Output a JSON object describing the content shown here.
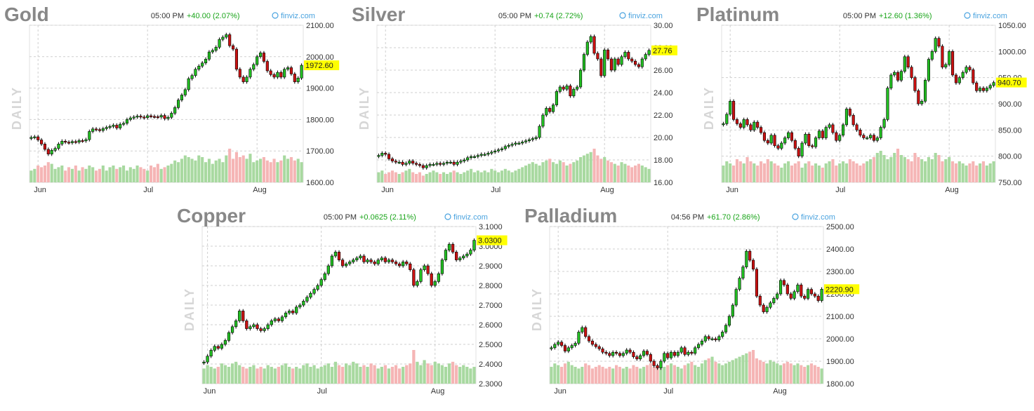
{
  "brand": "finviz.com",
  "period_label": "DAILY",
  "colors": {
    "up": "#22c022",
    "down": "#cc1111",
    "vol_up": "#a8d9a0",
    "vol_down": "#f5b5b5",
    "last_bg": "#ffff00",
    "grid": "#cfcfcf",
    "change": "#1aa51a",
    "brand": "#4aa3df"
  },
  "chart_data": [
    {
      "type": "candlestick",
      "title": "Gold",
      "time": "05:00 PM",
      "change": "+40.00 (2.07%)",
      "last": 1972.6,
      "last_label": "1972.60",
      "y_ticks": [
        "2100.00",
        "2000.00",
        "1900.00",
        "1800.00",
        "1700.00",
        "1600.00"
      ],
      "ylim": [
        1600,
        2100
      ],
      "x_ticks": [
        "Jun",
        "Jul",
        "Aug"
      ],
      "x_tick_index": [
        2,
        34,
        66
      ],
      "close": [
        1743,
        1745,
        1735,
        1722,
        1705,
        1690,
        1702,
        1708,
        1722,
        1731,
        1728,
        1726,
        1730,
        1728,
        1733,
        1732,
        1736,
        1762,
        1770,
        1768,
        1765,
        1771,
        1775,
        1778,
        1782,
        1773,
        1785,
        1788,
        1800,
        1805,
        1808,
        1811,
        1808,
        1806,
        1812,
        1810,
        1809,
        1808,
        1813,
        1803,
        1807,
        1820,
        1838,
        1862,
        1878,
        1895,
        1930,
        1940,
        1960,
        1970,
        1980,
        1992,
        2015,
        2020,
        2030,
        2055,
        2062,
        2070,
        2035,
        2024,
        1960,
        1935,
        1920,
        1935,
        1960,
        1975,
        2000,
        2012,
        1985,
        1955,
        1943,
        1935,
        1950,
        1935,
        1960,
        1965,
        1945,
        1920,
        1932,
        1972.6
      ],
      "volume": [
        0.35,
        0.4,
        0.5,
        0.45,
        0.5,
        0.6,
        0.55,
        0.4,
        0.45,
        0.5,
        0.35,
        0.45,
        0.4,
        0.5,
        0.35,
        0.45,
        0.4,
        0.5,
        0.45,
        0.35,
        0.4,
        0.5,
        0.35,
        0.45,
        0.5,
        0.4,
        0.45,
        0.5,
        0.35,
        0.45,
        0.4,
        0.5,
        0.45,
        0.4,
        0.35,
        0.5,
        0.45,
        0.55,
        0.4,
        0.45,
        0.5,
        0.55,
        0.65,
        0.6,
        0.7,
        0.8,
        0.75,
        0.7,
        0.65,
        0.8,
        0.75,
        0.6,
        0.7,
        0.55,
        0.65,
        0.7,
        0.6,
        0.8,
        1.0,
        0.7,
        0.9,
        0.75,
        0.8,
        0.7,
        0.85,
        0.6,
        0.65,
        0.7,
        0.75,
        0.65,
        0.6,
        0.7,
        0.6,
        0.65,
        0.8,
        0.7,
        0.75,
        0.65,
        0.7,
        0.6
      ]
    },
    {
      "type": "candlestick",
      "title": "Silver",
      "time": "05:00 PM",
      "change": "+0.74 (2.72%)",
      "last": 27.76,
      "last_label": "27.76",
      "y_ticks": [
        "30.00",
        "28.00",
        "26.00",
        "24.00",
        "22.00",
        "20.00",
        "18.00",
        "16.00"
      ],
      "ylim": [
        16,
        30
      ],
      "x_ticks": [
        "Jun",
        "Jul",
        "Aug"
      ],
      "x_tick_index": [
        2,
        34,
        66
      ],
      "close": [
        18.4,
        18.6,
        18.5,
        18.1,
        17.9,
        17.8,
        17.8,
        17.6,
        17.7,
        17.9,
        17.7,
        17.6,
        17.5,
        17.3,
        17.5,
        17.6,
        17.6,
        17.7,
        17.6,
        17.7,
        17.8,
        17.8,
        17.6,
        17.8,
        17.9,
        18.0,
        18.2,
        18.3,
        18.3,
        18.4,
        18.5,
        18.5,
        18.6,
        18.7,
        18.8,
        18.9,
        19.0,
        19.2,
        19.3,
        19.4,
        19.5,
        19.5,
        19.6,
        19.7,
        19.8,
        19.9,
        20.0,
        21.0,
        22.0,
        22.6,
        22.3,
        22.9,
        24.1,
        24.5,
        24.3,
        24.6,
        23.7,
        24.3,
        24.5,
        26.0,
        27.4,
        28.5,
        29.0,
        27.5,
        27.0,
        25.5,
        27.8,
        27.0,
        26.0,
        27.0,
        26.5,
        27.2,
        27.6,
        27.0,
        26.8,
        26.5,
        26.3,
        27.0,
        27.4,
        27.76
      ],
      "volume": [
        0.3,
        0.35,
        0.25,
        0.3,
        0.35,
        0.3,
        0.25,
        0.3,
        0.35,
        0.4,
        0.3,
        0.25,
        0.3,
        0.2,
        0.25,
        0.3,
        0.35,
        0.3,
        0.25,
        0.3,
        0.25,
        0.3,
        0.35,
        0.3,
        0.25,
        0.3,
        0.35,
        0.4,
        0.3,
        0.35,
        0.3,
        0.35,
        0.3,
        0.4,
        0.35,
        0.3,
        0.35,
        0.4,
        0.35,
        0.3,
        0.35,
        0.4,
        0.45,
        0.5,
        0.55,
        0.6,
        0.55,
        0.5,
        0.6,
        0.65,
        0.7,
        0.6,
        0.55,
        0.65,
        0.6,
        0.5,
        0.55,
        0.6,
        0.65,
        0.75,
        0.8,
        0.85,
        0.9,
        1.0,
        0.8,
        0.7,
        0.75,
        0.65,
        0.6,
        0.55,
        0.5,
        0.6,
        0.55,
        0.5,
        0.45,
        0.5,
        0.55,
        0.5,
        0.45,
        0.4
      ]
    },
    {
      "type": "candlestick",
      "title": "Platinum",
      "time": "05:00 PM",
      "change": "+12.60 (1.36%)",
      "last": 940.7,
      "last_label": "940.70",
      "y_ticks": [
        "1050.00",
        "1000.00",
        "950.00",
        "900.00",
        "850.00",
        "800.00",
        "750.00"
      ],
      "ylim": [
        750,
        1050
      ],
      "x_ticks": [
        "Jun",
        "Jul",
        "Aug"
      ],
      "x_tick_index": [
        2,
        34,
        66
      ],
      "close": [
        862,
        880,
        905,
        870,
        862,
        855,
        870,
        860,
        850,
        865,
        855,
        845,
        830,
        825,
        840,
        820,
        815,
        825,
        835,
        845,
        830,
        815,
        800,
        825,
        842,
        820,
        818,
        835,
        848,
        835,
        855,
        860,
        845,
        830,
        840,
        860,
        890,
        878,
        860,
        850,
        840,
        835,
        835,
        840,
        830,
        835,
        855,
        870,
        930,
        955,
        960,
        945,
        962,
        990,
        970,
        950,
        925,
        900,
        905,
        945,
        985,
        1000,
        1025,
        1010,
        970,
        975,
        1000,
        955,
        940,
        950,
        960,
        970,
        965,
        940,
        925,
        930,
        925,
        930,
        935,
        940.7
      ],
      "volume": [
        0.4,
        0.5,
        0.45,
        0.4,
        0.55,
        0.5,
        0.45,
        0.6,
        0.5,
        0.45,
        0.4,
        0.5,
        0.45,
        0.55,
        0.5,
        0.45,
        0.4,
        0.35,
        0.45,
        0.5,
        0.4,
        0.45,
        0.5,
        0.35,
        0.45,
        0.5,
        0.4,
        0.45,
        0.4,
        0.35,
        0.45,
        0.5,
        0.55,
        0.4,
        0.45,
        0.5,
        0.45,
        0.55,
        0.5,
        0.45,
        0.4,
        0.45,
        0.5,
        0.55,
        0.6,
        0.7,
        0.75,
        0.65,
        0.55,
        0.6,
        0.7,
        0.8,
        0.65,
        0.6,
        0.55,
        0.5,
        0.7,
        0.6,
        0.55,
        0.5,
        0.6,
        0.55,
        0.7,
        0.65,
        0.5,
        0.55,
        0.6,
        0.5,
        0.45,
        0.5,
        0.45,
        0.4,
        0.45,
        0.5,
        0.4,
        0.45,
        0.5,
        0.4,
        0.45,
        0.5
      ]
    },
    {
      "type": "candlestick",
      "title": "Copper",
      "time": "05:00 PM",
      "change": "+0.0625 (2.11%)",
      "last": 3.03,
      "last_label": "3.0300",
      "y_ticks": [
        "3.1000",
        "3.0000",
        "2.9000",
        "2.8000",
        "2.7000",
        "2.6000",
        "2.5000",
        "2.4000",
        "2.3000"
      ],
      "ylim": [
        2.3,
        3.1
      ],
      "x_ticks": [
        "Jun",
        "Jul",
        "Aug"
      ],
      "x_tick_index": [
        1,
        33,
        65
      ],
      "close": [
        2.41,
        2.44,
        2.47,
        2.49,
        2.48,
        2.5,
        2.52,
        2.56,
        2.59,
        2.62,
        2.67,
        2.62,
        2.58,
        2.59,
        2.6,
        2.58,
        2.57,
        2.58,
        2.6,
        2.62,
        2.63,
        2.62,
        2.64,
        2.66,
        2.67,
        2.66,
        2.69,
        2.7,
        2.72,
        2.74,
        2.76,
        2.78,
        2.8,
        2.83,
        2.86,
        2.9,
        2.95,
        2.97,
        2.93,
        2.9,
        2.91,
        2.92,
        2.93,
        2.94,
        2.95,
        2.92,
        2.93,
        2.92,
        2.91,
        2.93,
        2.94,
        2.92,
        2.93,
        2.92,
        2.91,
        2.9,
        2.92,
        2.91,
        2.88,
        2.8,
        2.82,
        2.88,
        2.9,
        2.86,
        2.8,
        2.82,
        2.86,
        2.93,
        2.98,
        3.01,
        2.97,
        2.93,
        2.94,
        2.95,
        2.96,
        2.98,
        3.03
      ],
      "volume": [
        0.45,
        0.55,
        0.5,
        0.45,
        0.5,
        0.6,
        0.55,
        0.5,
        0.6,
        0.65,
        0.55,
        0.5,
        0.45,
        0.5,
        0.55,
        0.45,
        0.5,
        0.45,
        0.55,
        0.5,
        0.45,
        0.5,
        0.55,
        0.6,
        0.5,
        0.45,
        0.5,
        0.45,
        0.55,
        0.6,
        0.5,
        0.55,
        0.45,
        0.5,
        0.55,
        0.6,
        0.5,
        0.65,
        0.55,
        0.5,
        0.6,
        0.55,
        0.65,
        0.6,
        0.5,
        0.55,
        0.5,
        0.6,
        0.55,
        0.45,
        0.5,
        0.55,
        0.45,
        0.5,
        0.55,
        0.45,
        0.5,
        0.55,
        0.6,
        1.0,
        0.65,
        0.55,
        0.7,
        0.6,
        0.55,
        0.65,
        0.6,
        0.55,
        0.5,
        0.6,
        0.65,
        0.55,
        0.5,
        0.55,
        0.5,
        0.45,
        0.5
      ]
    },
    {
      "type": "candlestick",
      "title": "Palladium",
      "time": "04:56 PM",
      "change": "+61.70 (2.86%)",
      "last": 2220.9,
      "last_label": "2220.90",
      "y_ticks": [
        "2500.00",
        "2400.00",
        "2300.00",
        "2200.00",
        "2100.00",
        "2000.00",
        "1900.00",
        "1800.00"
      ],
      "ylim": [
        1800,
        2500
      ],
      "x_ticks": [
        "Jun",
        "Jul",
        "Aug"
      ],
      "x_tick_index": [
        2,
        34,
        66
      ],
      "close": [
        1960,
        1975,
        1985,
        1970,
        1945,
        1960,
        1970,
        1980,
        2030,
        2050,
        2010,
        1990,
        1975,
        1965,
        1955,
        1940,
        1935,
        1925,
        1940,
        1935,
        1925,
        1935,
        1950,
        1940,
        1920,
        1910,
        1925,
        1945,
        1930,
        1900,
        1880,
        1870,
        1900,
        1935,
        1915,
        1940,
        1925,
        1940,
        1960,
        1930,
        1940,
        1935,
        1960,
        1975,
        1990,
        2010,
        2000,
        2000,
        1995,
        2010,
        2030,
        2060,
        2100,
        2150,
        2220,
        2270,
        2320,
        2390,
        2350,
        2310,
        2190,
        2150,
        2120,
        2140,
        2160,
        2180,
        2200,
        2260,
        2240,
        2200,
        2180,
        2210,
        2240,
        2190,
        2180,
        2220,
        2200,
        2190,
        2170,
        2220.9
      ],
      "volume": [
        0.5,
        0.6,
        0.55,
        0.5,
        0.6,
        0.65,
        0.55,
        0.5,
        0.45,
        0.5,
        0.6,
        0.55,
        0.45,
        0.5,
        0.55,
        0.5,
        0.45,
        0.5,
        0.45,
        0.55,
        0.5,
        0.45,
        0.5,
        0.45,
        0.55,
        0.5,
        0.45,
        0.5,
        0.55,
        0.6,
        0.5,
        0.55,
        0.45,
        0.5,
        0.55,
        0.6,
        0.55,
        0.5,
        0.45,
        0.55,
        0.6,
        0.65,
        0.55,
        0.5,
        0.6,
        0.7,
        0.75,
        0.8,
        0.65,
        0.6,
        0.55,
        0.6,
        0.65,
        0.7,
        0.75,
        0.8,
        0.85,
        0.9,
        0.95,
        1.0,
        0.75,
        0.7,
        0.65,
        0.6,
        0.7,
        0.65,
        0.6,
        0.55,
        0.6,
        0.65,
        0.6,
        0.55,
        0.6,
        0.55,
        0.5,
        0.55,
        0.6,
        0.55,
        0.5,
        0.45
      ]
    }
  ]
}
